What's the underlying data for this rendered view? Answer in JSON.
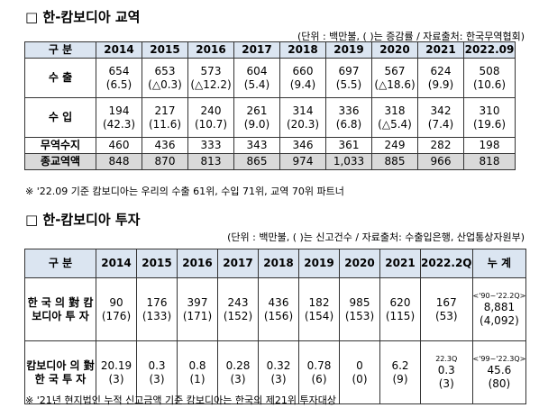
{
  "trade": {
    "title": "□ 한-캄보디아 교역",
    "unit": "(단위 : 백만불, ( )는 증감률 / 자료출처: 한국무역협회)",
    "header": [
      "구  분",
      "2014",
      "2015",
      "2016",
      "2017",
      "2018",
      "2019",
      "2020",
      "2021",
      "2022.09"
    ],
    "rows": [
      {
        "label": "수  출",
        "cells": [
          [
            "654",
            "(6.5)"
          ],
          [
            "653",
            "(△0.3)"
          ],
          [
            "573",
            "(△12.2)"
          ],
          [
            "604",
            "(5.4)"
          ],
          [
            "660",
            "(9.4)"
          ],
          [
            "697",
            "(5.5)"
          ],
          [
            "567",
            "(△18.6)"
          ],
          [
            "624",
            "(9.9)"
          ],
          [
            "508",
            "(10.6)"
          ]
        ]
      },
      {
        "label": "수  입",
        "cells": [
          [
            "194",
            "(42.3)"
          ],
          [
            "217",
            "(11.6)"
          ],
          [
            "240",
            "(10.7)"
          ],
          [
            "261",
            "(9.0)"
          ],
          [
            "314",
            "(20.3)"
          ],
          [
            "336",
            "(6.8)"
          ],
          [
            "318",
            "(△5.4)"
          ],
          [
            "342",
            "(7.4)"
          ],
          [
            "310",
            "(19.6)"
          ]
        ]
      },
      {
        "label": "무역수지",
        "cells": [
          [
            "460"
          ],
          [
            "436"
          ],
          [
            "333"
          ],
          [
            "343"
          ],
          [
            "346"
          ],
          [
            "361"
          ],
          [
            "249"
          ],
          [
            "282"
          ],
          [
            "198"
          ]
        ]
      },
      {
        "label": "종교역액",
        "cells": [
          [
            "848"
          ],
          [
            "870"
          ],
          [
            "813"
          ],
          [
            "865"
          ],
          [
            "974"
          ],
          [
            "1,033"
          ],
          [
            "885"
          ],
          [
            "966"
          ],
          [
            "818"
          ]
        ]
      }
    ],
    "note": "※ '22.09 기준 캄보디아는 우리의 수출 61위, 수입 71위, 교역 70위 파트너"
  },
  "investment": {
    "title": "□ 한-캄보디아 투자",
    "unit": "(단위 : 백만불, ( )는 신고건수 / 자료출처: 수출입은행, 산업통상자원부)",
    "header": [
      "구  분",
      "2014",
      "2015",
      "2016",
      "2017",
      "2018",
      "2019",
      "2020",
      "2021",
      "2022.2Q",
      "누  계"
    ],
    "rows": [
      {
        "label": "한 국 의 對 캄보디아 투  자",
        "cells": [
          [
            "90",
            "(176)"
          ],
          [
            "176",
            "(133)"
          ],
          [
            "397",
            "(171)"
          ],
          [
            "243",
            "(152)"
          ],
          [
            "436",
            "(156)"
          ],
          [
            "182",
            "(154)"
          ],
          [
            "985",
            "(153)"
          ],
          [
            "620",
            "(115)"
          ],
          [
            "167",
            "(53)"
          ],
          [
            "<'90~'22.2Q>",
            "8,881",
            "(4,092)"
          ]
        ]
      },
      {
        "label": "캄보디아 의 對 한 국 투  자",
        "cells": [
          [
            "20.19",
            "(3)"
          ],
          [
            "0.3",
            "(3)"
          ],
          [
            "0.8",
            "(1)"
          ],
          [
            "0.28",
            "(3)"
          ],
          [
            "0.32",
            "(3)"
          ],
          [
            "0.78",
            "(6)"
          ],
          [
            "0",
            "(0)"
          ],
          [
            "6.2",
            "(9)"
          ],
          [
            "22.3Q",
            "0.3",
            "(3)"
          ],
          [
            "<'99~'22.3Q>",
            "45.6",
            "(80)"
          ]
        ]
      }
    ],
    "note": "※ '21년 현지법인 누적 신고금액 기준 캄보디아는 한국의 제21위 투자대상"
  }
}
